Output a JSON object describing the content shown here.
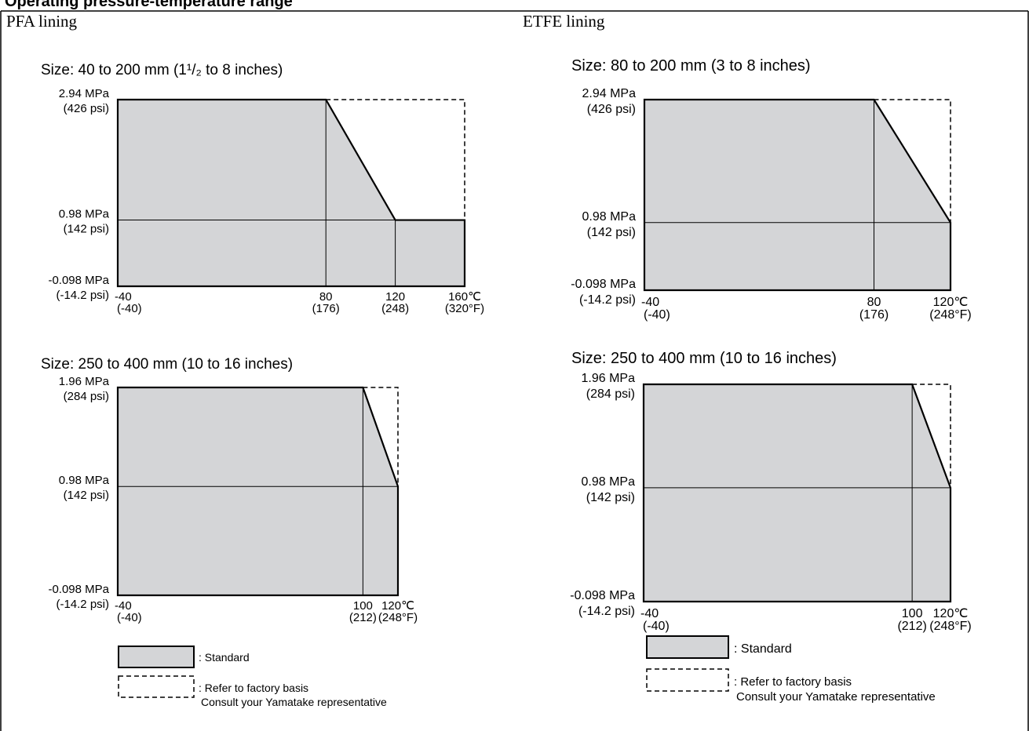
{
  "header_fragment": "Operating pressure-temperature range",
  "panels": [
    {
      "title": "PFA lining"
    },
    {
      "title": "ETFE lining"
    }
  ],
  "legend": {
    "standard": ": Standard",
    "factory_line1": ": Refer to factory basis",
    "factory_line2": "Consult your Yamatake representative",
    "colors": {
      "standard_fill": "#d4d5d7",
      "edge": "#000000"
    }
  },
  "chart_data": [
    {
      "type": "area",
      "panel": "PFA lining",
      "title": "Size: 40 to 200 mm (1¹/₂ to 8 inches)",
      "xlim": [
        -40,
        160
      ],
      "ylim": [
        -0.098,
        2.94
      ],
      "x_ticks": [
        [
          -40,
          "-40",
          "(-40)"
        ],
        [
          80,
          "80",
          "(176)"
        ],
        [
          120,
          "120",
          "(248)"
        ],
        [
          160,
          "160℃",
          "(320°F)"
        ]
      ],
      "y_ticks": [
        [
          2.94,
          "2.94 MPa",
          "(426 psi)"
        ],
        [
          0.98,
          "0.98 MPa",
          "(142 psi)"
        ],
        [
          -0.098,
          "-0.098 MPa",
          "(-14.2 psi)"
        ]
      ],
      "standard": [
        [
          -40,
          -0.098
        ],
        [
          -40,
          2.94
        ],
        [
          80,
          2.94
        ],
        [
          120,
          0.98
        ],
        [
          160,
          0.98
        ],
        [
          160,
          -0.098
        ]
      ],
      "factory_basis": [
        [
          80,
          2.94
        ],
        [
          160,
          2.94
        ],
        [
          160,
          0.98
        ]
      ],
      "vlines": [
        80,
        120
      ],
      "hlines": [
        0.98
      ]
    },
    {
      "type": "area",
      "panel": "ETFE lining",
      "title": "Size: 80 to 200 mm (3 to 8 inches)",
      "xlim": [
        -40,
        120
      ],
      "ylim": [
        -0.098,
        2.94
      ],
      "x_ticks": [
        [
          -40,
          "-40",
          "(-40)"
        ],
        [
          80,
          "80",
          "(176)"
        ],
        [
          120,
          "120℃",
          "(248°F)"
        ]
      ],
      "y_ticks": [
        [
          2.94,
          "2.94 MPa",
          "(426 psi)"
        ],
        [
          0.98,
          "0.98 MPa",
          "(142 psi)"
        ],
        [
          -0.098,
          "-0.098 MPa",
          "(-14.2 psi)"
        ]
      ],
      "standard": [
        [
          -40,
          -0.098
        ],
        [
          -40,
          2.94
        ],
        [
          80,
          2.94
        ],
        [
          120,
          0.98
        ],
        [
          120,
          -0.098
        ]
      ],
      "factory_basis": [
        [
          80,
          2.94
        ],
        [
          120,
          2.94
        ],
        [
          120,
          0.98
        ]
      ],
      "vlines": [
        80
      ],
      "hlines": [
        0.98
      ]
    },
    {
      "type": "area",
      "panel": "PFA lining",
      "title": "Size: 250 to 400 mm (10 to 16 inches)",
      "xlim": [
        -40,
        120
      ],
      "ylim": [
        -0.098,
        1.96
      ],
      "x_ticks": [
        [
          -40,
          "-40",
          "(-40)"
        ],
        [
          100,
          "100",
          "(212)"
        ],
        [
          120,
          "120℃",
          "(248°F)"
        ]
      ],
      "y_ticks": [
        [
          1.96,
          "1.96 MPa",
          "(284 psi)"
        ],
        [
          0.98,
          "0.98 MPa",
          "(142 psi)"
        ],
        [
          -0.098,
          "-0.098 MPa",
          "(-14.2 psi)"
        ]
      ],
      "standard": [
        [
          -40,
          -0.098
        ],
        [
          -40,
          1.96
        ],
        [
          100,
          1.96
        ],
        [
          120,
          0.98
        ],
        [
          120,
          -0.098
        ]
      ],
      "factory_basis": [
        [
          100,
          1.96
        ],
        [
          120,
          1.96
        ],
        [
          120,
          0.98
        ]
      ],
      "vlines": [
        100
      ],
      "hlines": [
        0.98
      ]
    },
    {
      "type": "area",
      "panel": "ETFE lining",
      "title": "Size: 250 to 400 mm (10 to 16 inches)",
      "xlim": [
        -40,
        120
      ],
      "ylim": [
        -0.098,
        1.96
      ],
      "x_ticks": [
        [
          -40,
          "-40",
          "(-40)"
        ],
        [
          100,
          "100",
          "(212)"
        ],
        [
          120,
          "120℃",
          "(248°F)"
        ]
      ],
      "y_ticks": [
        [
          1.96,
          "1.96 MPa",
          "(284 psi)"
        ],
        [
          0.98,
          "0.98 MPa",
          "(142 psi)"
        ],
        [
          -0.098,
          "-0.098 MPa",
          "(-14.2 psi)"
        ]
      ],
      "standard": [
        [
          -40,
          -0.098
        ],
        [
          -40,
          1.96
        ],
        [
          100,
          1.96
        ],
        [
          120,
          0.98
        ],
        [
          120,
          -0.098
        ]
      ],
      "factory_basis": [
        [
          100,
          1.96
        ],
        [
          120,
          1.96
        ],
        [
          120,
          0.98
        ]
      ],
      "vlines": [
        100
      ],
      "hlines": [
        0.98
      ]
    }
  ]
}
